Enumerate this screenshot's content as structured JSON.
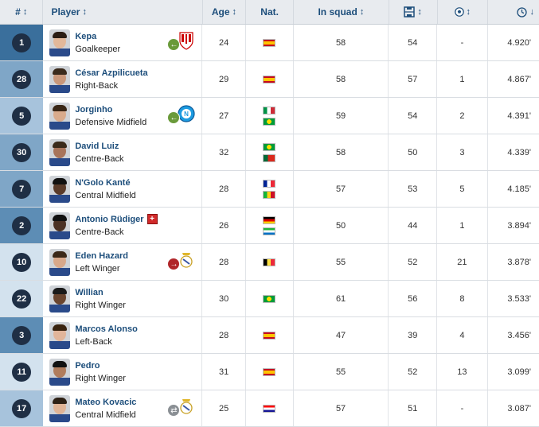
{
  "headers": {
    "num": "#",
    "player": "Player",
    "age": "Age",
    "nat": "Nat.",
    "in_squad": "In squad"
  },
  "players": [
    {
      "num": "1",
      "name": "Kepa",
      "pos": "Goalkeeper",
      "age": "24",
      "flags": [
        "es"
      ],
      "squad": "58",
      "starts": "54",
      "goals": "-",
      "minutes": "4.920'",
      "transfer": {
        "dir": "in",
        "club": "athletic"
      },
      "num_bg": "#3a6f9c"
    },
    {
      "num": "28",
      "name": "César Azpilicueta",
      "pos": "Right-Back",
      "age": "29",
      "flags": [
        "es"
      ],
      "squad": "58",
      "starts": "57",
      "goals": "1",
      "minutes": "4.867'",
      "num_bg": "#7fa6c7"
    },
    {
      "num": "5",
      "name": "Jorginho",
      "pos": "Defensive Midfield",
      "age": "27",
      "flags": [
        "it",
        "br"
      ],
      "squad": "59",
      "starts": "54",
      "goals": "2",
      "minutes": "4.391'",
      "transfer": {
        "dir": "in",
        "club": "napoli"
      },
      "num_bg": "#a7c3dc"
    },
    {
      "num": "30",
      "name": "David Luiz",
      "pos": "Centre-Back",
      "age": "32",
      "flags": [
        "br",
        "pt"
      ],
      "squad": "58",
      "starts": "50",
      "goals": "3",
      "minutes": "4.339'",
      "num_bg": "#7fa6c7"
    },
    {
      "num": "7",
      "name": "N'Golo Kanté",
      "pos": "Central Midfield",
      "age": "28",
      "flags": [
        "fr",
        "ml"
      ],
      "squad": "57",
      "starts": "53",
      "goals": "5",
      "minutes": "4.185'",
      "num_bg": "#7fa6c7"
    },
    {
      "num": "2",
      "name": "Antonio Rüdiger",
      "pos": "Centre-Back",
      "age": "26",
      "flags": [
        "de",
        "sl"
      ],
      "squad": "50",
      "starts": "44",
      "goals": "1",
      "minutes": "3.894'",
      "injury": true,
      "num_bg": "#5d8db5"
    },
    {
      "num": "10",
      "name": "Eden Hazard",
      "pos": "Left Winger",
      "age": "28",
      "flags": [
        "be"
      ],
      "squad": "55",
      "starts": "52",
      "goals": "21",
      "minutes": "3.878'",
      "transfer": {
        "dir": "out",
        "club": "realmadrid"
      },
      "num_bg": "#d3e2ee"
    },
    {
      "num": "22",
      "name": "Willian",
      "pos": "Right Winger",
      "age": "30",
      "flags": [
        "br"
      ],
      "squad": "61",
      "starts": "56",
      "goals": "8",
      "minutes": "3.533'",
      "num_bg": "#d3e2ee"
    },
    {
      "num": "3",
      "name": "Marcos Alonso",
      "pos": "Left-Back",
      "age": "28",
      "flags": [
        "es"
      ],
      "squad": "47",
      "starts": "39",
      "goals": "4",
      "minutes": "3.456'",
      "num_bg": "#5d8db5"
    },
    {
      "num": "11",
      "name": "Pedro",
      "pos": "Right Winger",
      "age": "31",
      "flags": [
        "es"
      ],
      "squad": "55",
      "starts": "52",
      "goals": "13",
      "minutes": "3.099'",
      "num_bg": "#d3e2ee"
    },
    {
      "num": "17",
      "name": "Mateo Kovacic",
      "pos": "Central Midfield",
      "age": "25",
      "flags": [
        "hr"
      ],
      "squad": "57",
      "starts": "51",
      "goals": "-",
      "minutes": "3.087'",
      "transfer": {
        "dir": "loan",
        "club": "realmadrid"
      },
      "num_bg": "#a7c3dc"
    }
  ]
}
